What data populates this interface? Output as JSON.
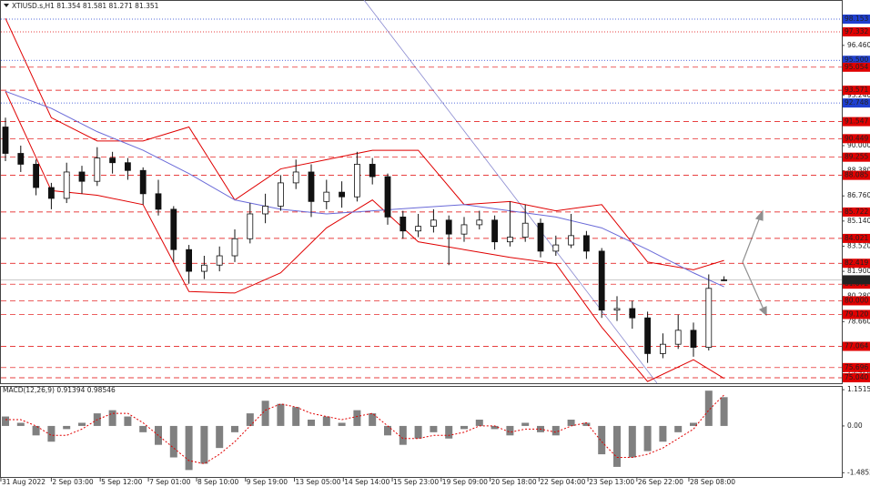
{
  "chart_data": [
    {
      "type": "candlestick",
      "title": "XTIUSD.s,H1  81.354 81.581 81.271 81.351",
      "open": [
        91.2,
        89.5,
        88.8,
        87.3,
        86.6,
        88.3,
        87.7,
        89.2,
        88.9,
        88.4,
        86.9,
        85.9,
        83.3,
        81.9,
        82.3,
        82.9,
        84.0,
        85.6,
        86.1,
        87.6,
        88.3,
        86.4,
        87.0,
        86.7,
        88.8,
        88.0,
        85.4,
        84.5,
        84.8,
        85.2,
        84.3,
        84.9,
        85.2,
        83.8,
        84.1,
        85.0,
        83.2,
        83.6,
        84.2,
        83.2,
        79.4,
        79.5,
        78.9,
        76.6,
        77.2,
        78.1,
        77.0,
        81.354
      ],
      "high": [
        91.8,
        90.0,
        89.1,
        87.6,
        88.9,
        88.7,
        89.9,
        89.6,
        89.2,
        88.6,
        87.8,
        86.1,
        83.6,
        82.9,
        83.5,
        84.6,
        86.3,
        86.9,
        88.1,
        89.1,
        88.8,
        87.8,
        87.7,
        89.6,
        89.2,
        88.2,
        85.8,
        85.6,
        85.9,
        85.5,
        85.4,
        85.8,
        85.5,
        86.4,
        86.2,
        85.3,
        84.2,
        85.6,
        84.5,
        83.4,
        80.3,
        80.0,
        79.3,
        77.9,
        79.1,
        78.6,
        81.7,
        81.581
      ],
      "low": [
        89.0,
        88.3,
        86.8,
        85.9,
        86.3,
        86.9,
        87.4,
        88.2,
        87.8,
        86.2,
        85.5,
        82.5,
        81.1,
        81.4,
        81.9,
        82.5,
        83.7,
        85.0,
        85.8,
        87.2,
        85.4,
        85.9,
        86.0,
        86.4,
        87.5,
        84.9,
        84.0,
        84.1,
        84.4,
        82.3,
        83.8,
        84.6,
        83.3,
        83.5,
        83.8,
        82.8,
        82.9,
        83.4,
        82.7,
        78.9,
        78.7,
        78.2,
        76.0,
        76.3,
        76.9,
        76.4,
        76.8,
        81.271
      ],
      "close": [
        89.5,
        88.8,
        87.3,
        86.6,
        88.3,
        87.7,
        89.2,
        88.9,
        88.4,
        86.9,
        85.9,
        83.3,
        81.9,
        82.3,
        82.9,
        84.0,
        85.6,
        86.1,
        87.6,
        88.3,
        86.4,
        87.0,
        86.7,
        88.8,
        88.0,
        85.4,
        84.5,
        84.8,
        85.2,
        84.3,
        84.9,
        85.2,
        83.8,
        84.1,
        85.0,
        83.2,
        83.6,
        84.2,
        83.2,
        79.4,
        79.5,
        78.9,
        76.6,
        77.2,
        78.1,
        77.0,
        80.8,
        81.351
      ],
      "ylim": [
        74.688,
        99.385
      ],
      "yticks": [
        {
          "value": 96.46,
          "label": "96.460"
        },
        {
          "value": 93.24,
          "label": "93.240"
        },
        {
          "value": 90,
          "label": "90.000"
        },
        {
          "value": 88.38,
          "label": "88.380"
        },
        {
          "value": 86.76,
          "label": "86.760"
        },
        {
          "value": 85.14,
          "label": "85.140"
        },
        {
          "value": 83.52,
          "label": "83.520"
        },
        {
          "value": 81.9,
          "label": "81.900"
        },
        {
          "value": 80.28,
          "label": "80.280"
        },
        {
          "value": 78.66,
          "label": "78.660"
        },
        {
          "value": 75.42,
          "label": "75.420"
        }
      ],
      "xticks": [
        {
          "value": -0.3,
          "label": "31 Aug 2022"
        },
        {
          "value": 3.0,
          "label": "2 Sep 03:00"
        },
        {
          "value": 6.2,
          "label": "5 Sep 12:00"
        },
        {
          "value": 9.35,
          "label": "7 Sep 01:00"
        },
        {
          "value": 12.5,
          "label": "8 Sep 10:00"
        },
        {
          "value": 15.7,
          "label": "9 Sep 19:00"
        },
        {
          "value": 18.9,
          "label": "13 Sep 05:00"
        },
        {
          "value": 22.1,
          "label": "14 Sep 14:00"
        },
        {
          "value": 25.3,
          "label": "15 Sep 23:00"
        },
        {
          "value": 28.5,
          "label": "19 Sep 09:00"
        },
        {
          "value": 31.7,
          "label": "20 Sep 18:00"
        },
        {
          "value": 34.9,
          "label": "22 Sep 04:00"
        },
        {
          "value": 38.1,
          "label": "23 Sep 13:00"
        },
        {
          "value": 41.3,
          "label": "26 Sep 22:00"
        },
        {
          "value": 44.7,
          "label": "28 Sep 08:00"
        }
      ],
      "bands": [
        {
          "color": "#e00000",
          "x": [
            0,
            3,
            6,
            9,
            12,
            15,
            18,
            21,
            24,
            27,
            30,
            33,
            36,
            39,
            42,
            45,
            47
          ],
          "values": [
            98.2,
            91.8,
            90.3,
            90.3,
            91.2,
            86.5,
            88.5,
            89.1,
            89.7,
            89.7,
            86.2,
            86.4,
            85.8,
            86.2,
            82.5,
            82.0,
            82.6
          ]
        },
        {
          "color": "#e00000",
          "x": [
            0,
            3,
            6,
            9,
            12,
            15,
            18,
            21,
            24,
            27,
            30,
            33,
            36,
            39,
            42,
            45,
            47
          ],
          "values": [
            93.5,
            87.1,
            86.8,
            86.2,
            80.6,
            80.5,
            81.8,
            84.7,
            86.5,
            83.8,
            83.3,
            82.8,
            82.4,
            78.3,
            74.8,
            76.2,
            75.0
          ]
        },
        {
          "color": "#6a6ad8",
          "x": [
            0,
            3,
            6,
            9,
            12,
            15,
            18,
            21,
            24,
            27,
            30,
            33,
            36,
            39,
            42,
            45,
            47
          ],
          "values": [
            93.5,
            92.4,
            90.9,
            89.7,
            88.2,
            86.5,
            85.9,
            85.6,
            85.8,
            86.0,
            86.2,
            85.8,
            85.4,
            84.7,
            83.3,
            81.8,
            80.9
          ]
        }
      ],
      "levels": [
        {
          "value": 98.153,
          "label": "98.153",
          "color": "#1f3fd0",
          "style": "dotted"
        },
        {
          "value": 97.332,
          "label": "97.332",
          "color": "#e00000",
          "style": "dotted"
        },
        {
          "value": 95.5,
          "label": "95.500",
          "color": "#1f3fd0",
          "style": "dotted"
        },
        {
          "value": 95.054,
          "label": "95.054",
          "color": "#e00000",
          "style": "dashed"
        },
        {
          "value": 93.571,
          "label": "93.571",
          "color": "#e00000",
          "style": "dashed"
        },
        {
          "value": 92.748,
          "label": "92.748",
          "color": "#1f3fd0",
          "style": "dotted"
        },
        {
          "value": 91.547,
          "label": "91.547",
          "color": "#e00000",
          "style": "dashed"
        },
        {
          "value": 90.449,
          "label": "90.449",
          "color": "#e00000",
          "style": "dashed"
        },
        {
          "value": 89.255,
          "label": "89.255",
          "color": "#e00000",
          "style": "dashed"
        },
        {
          "value": 88.085,
          "label": "88.085",
          "color": "#e00000",
          "style": "dashed"
        },
        {
          "value": 85.722,
          "label": "85.722",
          "color": "#e00000",
          "style": "dashed"
        },
        {
          "value": 84.021,
          "label": "84.021",
          "color": "#e00000",
          "style": "dashed"
        },
        {
          "value": 82.419,
          "label": "82.419",
          "color": "#e00000",
          "style": "dashed"
        },
        {
          "value": 81.072,
          "label": "81.072",
          "color": "#e00000",
          "style": "dashed"
        },
        {
          "value": 80,
          "label": "80.000",
          "color": "#e00000",
          "style": "dashed"
        },
        {
          "value": 79.12,
          "label": "79.120",
          "color": "#e00000",
          "style": "dashed"
        },
        {
          "value": 77.064,
          "label": "77.064",
          "color": "#e00000",
          "style": "dashed"
        },
        {
          "value": 75.696,
          "label": "75.696",
          "color": "#e00000",
          "style": "dashed"
        },
        {
          "value": 75.04,
          "label": "75.040",
          "color": "#e00000",
          "style": "dashed"
        }
      ],
      "last": 81.351
    },
    {
      "type": "macd",
      "title": "MACD(12,26,9) 0.91394 0.98546",
      "series": [
        {
          "color": "#808080",
          "values": [
            0.3,
            0.1,
            -0.3,
            -0.5,
            -0.1,
            0.1,
            0.4,
            0.5,
            0.3,
            -0.2,
            -0.6,
            -1.0,
            -1.4,
            -1.2,
            -0.7,
            -0.2,
            0.4,
            0.8,
            0.7,
            0.6,
            0.2,
            0.3,
            0.1,
            0.5,
            0.4,
            -0.3,
            -0.6,
            -0.4,
            -0.2,
            -0.4,
            -0.1,
            0.2,
            -0.1,
            -0.3,
            0.1,
            -0.2,
            -0.3,
            0.2,
            0.1,
            -0.9,
            -1.3,
            -1.0,
            -0.8,
            -0.5,
            -0.2,
            0.1,
            1.12,
            0.91394
          ]
        },
        {
          "color": "#e00000",
          "values": [
            0.2,
            0.2,
            0.0,
            -0.3,
            -0.3,
            -0.1,
            0.2,
            0.4,
            0.4,
            0.1,
            -0.3,
            -0.7,
            -1.1,
            -1.2,
            -0.9,
            -0.5,
            0.0,
            0.5,
            0.7,
            0.6,
            0.4,
            0.3,
            0.2,
            0.3,
            0.4,
            0.0,
            -0.4,
            -0.4,
            -0.3,
            -0.3,
            -0.2,
            0.0,
            0.0,
            -0.2,
            -0.1,
            -0.1,
            -0.2,
            0.0,
            0.1,
            -0.5,
            -1.0,
            -1.0,
            -0.9,
            -0.7,
            -0.4,
            -0.1,
            0.5,
            0.98546
          ]
        }
      ],
      "ylim": [
        -1.65,
        1.27
      ],
      "yticks": [
        1.15153,
        {
          "value": 0,
          "label": "0.00"
        },
        -1.48522
      ]
    }
  ]
}
